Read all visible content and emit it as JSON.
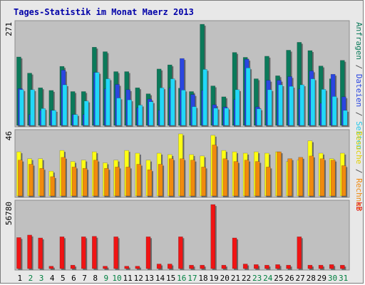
{
  "chart_data": {
    "type": "bar",
    "title": "Tages-Statistik im Monat Maerz 2013",
    "categories": [
      "1",
      "2",
      "3",
      "4",
      "5",
      "6",
      "7",
      "8",
      "9",
      "10",
      "11",
      "12",
      "13",
      "14",
      "15",
      "16",
      "17",
      "18",
      "19",
      "20",
      "21",
      "22",
      "23",
      "24",
      "25",
      "26",
      "27",
      "28",
      "29",
      "30",
      "31"
    ],
    "weekend_days": [
      "2",
      "3",
      "9",
      "10",
      "16",
      "17",
      "23",
      "24",
      "30",
      "31"
    ],
    "panels": [
      {
        "id": "top",
        "scale_label": "271",
        "ymax": 271,
        "series": [
          {
            "name": "Anfragen",
            "color": "#0b7a5a",
            "values": [
              182,
              139,
              100,
              93,
              157,
              90,
              90,
              208,
              196,
              143,
              143,
              100,
              84,
              150,
              161,
              99,
              90,
              269,
              105,
              76,
              194,
              181,
              124,
              184,
              132,
              200,
              221,
              199,
              158,
              124,
              173
            ]
          },
          {
            "name": "Dateien",
            "color": "#2a46e0",
            "values": [
              98,
              29,
              40,
              40,
              147,
              29,
              29,
              141,
              97,
              109,
              95,
              47,
              70,
              40,
              100,
              178,
              82,
              93,
              55,
              49,
              69,
              176,
              49,
              120,
              120,
              130,
              97,
              145,
              59,
              136,
              76
            ]
          },
          {
            "name": "Seiten",
            "color": "#22d8f8",
            "values": [
              95,
              95,
              45,
              40,
              108,
              29,
              65,
              141,
              124,
              73,
              68,
              54,
              63,
              100,
              124,
              94,
              50,
              149,
              46,
              46,
              95,
              153,
              44,
              95,
              108,
              104,
              108,
              124,
              96,
              77,
              40
            ]
          }
        ]
      },
      {
        "id": "middle",
        "scale_label": "46",
        "ymax": 46,
        "series": [
          {
            "name": "Besuche",
            "color": "#ffff14",
            "values": [
              32,
              27,
              27,
              18,
              33,
              25,
              26,
              32,
              24,
              26,
              33,
              31,
              26,
              31,
              30,
              45,
              30,
              29,
              44,
              33,
              32,
              31,
              32,
              31,
              32,
              25,
              26,
              40,
              31,
              27,
              31
            ]
          },
          {
            "name": "Rechner",
            "color": "#f08a0e",
            "values": [
              26,
              23,
              20,
              14,
              28,
              21,
              20,
              26,
              20,
              21,
              21,
              23,
              19,
              23,
              27,
              27,
              26,
              21,
              37,
              27,
              25,
              26,
              25,
              21,
              32,
              27,
              28,
              29,
              27,
              26,
              22
            ]
          }
        ]
      },
      {
        "id": "bottom",
        "scale_label": "56780",
        "ymax": 56780,
        "series": [
          {
            "name": "kB",
            "color": "#f01414",
            "values": [
              26915,
              29083,
              26574,
              2094,
              27574,
              3000,
              27574,
              27965,
              2094,
              27574,
              2094,
              2094,
              27574,
              4000,
              4000,
              27574,
              3000,
              3000,
              55500,
              3000,
              26574,
              4000,
              3500,
              3000,
              3500,
              3000,
              27574,
              3000,
              3000,
              3500,
              3000
            ]
          }
        ]
      }
    ],
    "right_labels": {
      "top": [
        {
          "text": "Anfragen",
          "color": "#0b7a5a"
        },
        {
          "text": "/",
          "color": "#555555"
        },
        {
          "text": "Dateien",
          "color": "#2a46e0"
        },
        {
          "text": "/",
          "color": "#555555"
        },
        {
          "text": "Seiten",
          "color": "#22c8e8"
        }
      ],
      "middle": [
        {
          "text": "Besuche",
          "color": "#e0d000"
        },
        {
          "text": "/",
          "color": "#555555"
        },
        {
          "text": "Rechner",
          "color": "#f08a0e"
        }
      ],
      "bottom": [
        {
          "text": "kB",
          "color": "#e01414"
        }
      ]
    },
    "colors": {
      "plot_bg": "#c0c0c0",
      "frame_bg": "#e8e8e8",
      "title": "#0000a8",
      "weekday_label": "#000000",
      "weekend_label": "#008040"
    }
  }
}
